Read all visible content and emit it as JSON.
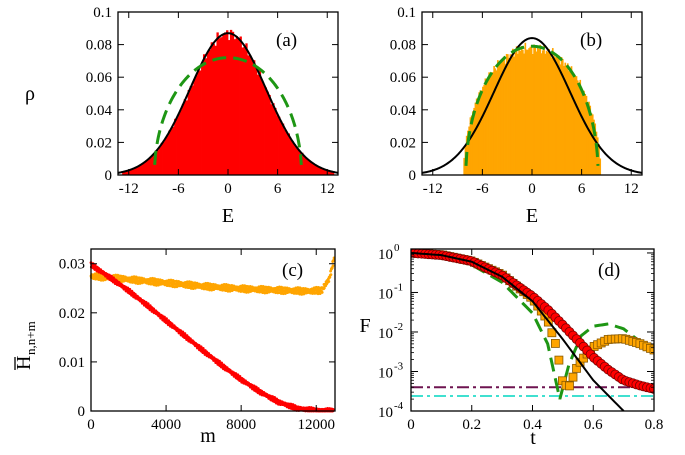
{
  "figure": {
    "colors": {
      "red": "#ff0000",
      "orange": "#ffa500",
      "green_dashed": "#1e9614",
      "black": "#000000",
      "purple": "#6e1450",
      "cyan": "#40e0d0",
      "dark_red_edge": "#7a0000",
      "orange_edge": "#8a5a00"
    }
  },
  "chart_data": [
    {
      "id": "a",
      "type": "bar",
      "panel_label": "(a)",
      "xlabel": "E",
      "ylabel": "ρ",
      "xlim": [
        -13.3,
        13.3
      ],
      "ylim": [
        0,
        0.1
      ],
      "xticks": [
        "-12",
        "-6",
        "0",
        "6",
        "12"
      ],
      "yticks": [
        "0",
        "0.02",
        "0.04",
        "0.06",
        "0.08",
        "0.1"
      ],
      "histogram": {
        "color": "red",
        "model": "gaussian",
        "center": 0,
        "peak": 0.087,
        "sigma": 4.6,
        "range": [
          -12.8,
          12.8
        ]
      },
      "curves": [
        {
          "style": "solid-black",
          "model": "gaussian",
          "center": 0,
          "peak": 0.087,
          "sigma": 4.6
        },
        {
          "style": "dashed-green",
          "model": "semicircle",
          "center": 0,
          "peak": 0.072,
          "radius": 8.9
        }
      ]
    },
    {
      "id": "b",
      "type": "bar",
      "panel_label": "(b)",
      "xlabel": "E",
      "ylabel": "",
      "xlim": [
        -13.3,
        13.3
      ],
      "ylim": [
        0,
        0.1
      ],
      "xticks": [
        "-12",
        "-6",
        "0",
        "6",
        "12"
      ],
      "yticks": [
        "0",
        "0.02",
        "0.04",
        "0.06",
        "0.08",
        "0.1"
      ],
      "histogram": {
        "color": "orange",
        "model": "semicircle",
        "center": 0,
        "peak": 0.078,
        "radius": 8.3
      },
      "curves": [
        {
          "style": "solid-black",
          "model": "gaussian",
          "center": 0,
          "peak": 0.084,
          "sigma": 4.6
        },
        {
          "style": "dashed-green",
          "model": "semicircle",
          "center": 0,
          "peak": 0.079,
          "radius": 8.0
        }
      ]
    },
    {
      "id": "c",
      "type": "scatter",
      "panel_label": "(c)",
      "xlabel": "m",
      "ylabel": "H̅n,n+m",
      "ylabel_main": "H",
      "ylabel_sub": "n,n+m",
      "xlim": [
        0,
        13000
      ],
      "ylim": [
        0,
        0.033
      ],
      "xticks": [
        "0",
        "4000",
        "8000",
        "12000"
      ],
      "yticks": [
        "0",
        "0.01",
        "0.02",
        "0.03"
      ],
      "series": [
        {
          "color": "orange",
          "points": [
            [
              0,
              0.0275
            ],
            [
              2000,
              0.0268
            ],
            [
              4000,
              0.0261
            ],
            [
              6000,
              0.0254
            ],
            [
              8000,
              0.0249
            ],
            [
              10000,
              0.0246
            ],
            [
              11500,
              0.0244
            ],
            [
              12300,
              0.0246
            ],
            [
              12700,
              0.027
            ],
            [
              12950,
              0.031
            ]
          ]
        },
        {
          "color": "red",
          "points": [
            [
              0,
              0.0298
            ],
            [
              1000,
              0.0272
            ],
            [
              2000,
              0.0245
            ],
            [
              3000,
              0.0215
            ],
            [
              4000,
              0.0184
            ],
            [
              5000,
              0.0153
            ],
            [
              6000,
              0.0122
            ],
            [
              7000,
              0.0092
            ],
            [
              8000,
              0.0064
            ],
            [
              9000,
              0.0039
            ],
            [
              10000,
              0.0018
            ],
            [
              11000,
              0.0005
            ],
            [
              12000,
              0.0001
            ],
            [
              12900,
              0.0
            ]
          ]
        }
      ]
    },
    {
      "id": "d",
      "type": "line",
      "panel_label": "(d)",
      "xlabel": "t",
      "ylabel": "F",
      "xlim": [
        0,
        0.8
      ],
      "ylim_log10": [
        -4,
        0.1
      ],
      "xticks": [
        "0",
        "0.2",
        "0.4",
        "0.6",
        "0.8"
      ],
      "yticks": [
        {
          "mant": "10",
          "exp": "0"
        },
        {
          "mant": "10",
          "exp": "-1"
        },
        {
          "mant": "10",
          "exp": "-2"
        },
        {
          "mant": "10",
          "exp": "-3"
        },
        {
          "mant": "10",
          "exp": "-4"
        }
      ],
      "series": [
        {
          "style": "solid-black",
          "points": [
            [
              0,
              1.0
            ],
            [
              0.1,
              0.88
            ],
            [
              0.2,
              0.6
            ],
            [
              0.3,
              0.25
            ],
            [
              0.4,
              0.06
            ],
            [
              0.5,
              0.0065
            ],
            [
              0.6,
              0.0006
            ],
            [
              0.7,
              0.0001
            ]
          ]
        },
        {
          "style": "dashed-green",
          "points": [
            [
              0,
              1.0
            ],
            [
              0.1,
              0.85
            ],
            [
              0.2,
              0.5
            ],
            [
              0.3,
              0.18
            ],
            [
              0.4,
              0.03
            ],
            [
              0.45,
              0.005
            ],
            [
              0.49,
              0.0002
            ],
            [
              0.52,
              0.0015
            ],
            [
              0.56,
              0.008
            ],
            [
              0.6,
              0.014
            ],
            [
              0.65,
              0.016
            ],
            [
              0.7,
              0.012
            ],
            [
              0.75,
              0.006
            ],
            [
              0.8,
              0.003
            ]
          ]
        },
        {
          "style": "orange-squares",
          "points": [
            [
              0,
              1.0
            ],
            [
              0.1,
              0.9
            ],
            [
              0.2,
              0.62
            ],
            [
              0.3,
              0.28
            ],
            [
              0.4,
              0.07
            ],
            [
              0.45,
              0.02
            ],
            [
              0.48,
              0.004
            ],
            [
              0.5,
              0.0005
            ],
            [
              0.52,
              0.0004
            ],
            [
              0.55,
              0.0015
            ],
            [
              0.6,
              0.0042
            ],
            [
              0.65,
              0.0065
            ],
            [
              0.7,
              0.0068
            ],
            [
              0.75,
              0.0052
            ],
            [
              0.8,
              0.0035
            ]
          ]
        },
        {
          "style": "red-circles",
          "points": [
            [
              0,
              1.0
            ],
            [
              0.1,
              0.88
            ],
            [
              0.2,
              0.62
            ],
            [
              0.3,
              0.27
            ],
            [
              0.4,
              0.08
            ],
            [
              0.45,
              0.037
            ],
            [
              0.5,
              0.015
            ],
            [
              0.55,
              0.006
            ],
            [
              0.6,
              0.0023
            ],
            [
              0.65,
              0.0011
            ],
            [
              0.7,
              0.0006
            ],
            [
              0.75,
              0.00045
            ],
            [
              0.8,
              0.00036
            ]
          ]
        },
        {
          "style": "dashdot-purple",
          "points": [
            [
              0,
              0.0004
            ],
            [
              0.8,
              0.0004
            ]
          ]
        },
        {
          "style": "dashdot-cyan",
          "points": [
            [
              0,
              0.00024
            ],
            [
              0.8,
              0.00024
            ]
          ]
        }
      ]
    }
  ]
}
